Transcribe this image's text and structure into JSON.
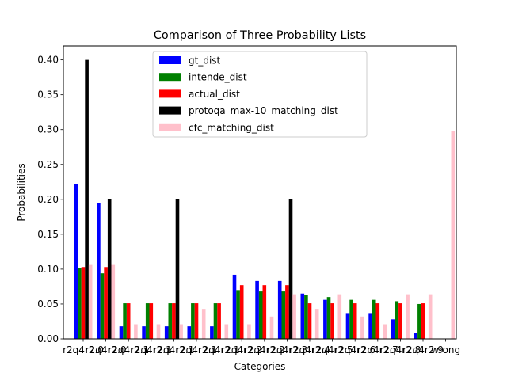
{
  "chart_data": {
    "type": "bar",
    "title": "Comparison of Three Probability Lists",
    "xlabel": "Categories",
    "ylabel": "Probabilities",
    "ylim": [
      0,
      0.42
    ],
    "yticks": [
      "0.00",
      "0.05",
      "0.10",
      "0.15",
      "0.20",
      "0.25",
      "0.30",
      "0.35",
      "0.40"
    ],
    "ytick_values": [
      0,
      0.05,
      0.1,
      0.15,
      0.2,
      0.25,
      0.3,
      0.35,
      0.4
    ],
    "legend_position": "top-center",
    "grid": false,
    "categories": [
      "r2q4r2.0",
      "r2q4r2.0",
      "r2q4r2.1",
      "r2q4r2.1",
      "r2q4r2.1",
      "r2q4r2.1",
      "r2q4r2.1",
      "r2q4r2.2",
      "r2q4r2.2",
      "r2q4r2.3",
      "r2q4r2.4",
      "r2q4r2.5",
      "r2q4r2.6",
      "r2q4r2.7",
      "r2q4r2.8",
      "r2q4r2.9",
      "wrong"
    ],
    "series": [
      {
        "name": "gt_dist",
        "color": "#0000ff",
        "values": [
          0.222,
          0.195,
          0.018,
          0.018,
          0.018,
          0.018,
          0.018,
          0.092,
          0.083,
          0.083,
          0.065,
          0.056,
          0.037,
          0.037,
          0.028,
          0.009,
          0.0
        ]
      },
      {
        "name": "intende_dist",
        "color": "#008000",
        "values": [
          0.101,
          0.094,
          0.051,
          0.051,
          0.051,
          0.051,
          0.051,
          0.07,
          0.068,
          0.068,
          0.063,
          0.06,
          0.056,
          0.056,
          0.054,
          0.05,
          0.0
        ]
      },
      {
        "name": "actual_dist",
        "color": "#ff0000",
        "values": [
          0.103,
          0.103,
          0.051,
          0.051,
          0.051,
          0.051,
          0.051,
          0.077,
          0.077,
          0.077,
          0.051,
          0.051,
          0.051,
          0.051,
          0.051,
          0.051,
          0.0
        ]
      },
      {
        "name": "protoqa_max-10_matching_dist",
        "color": "#000000",
        "values": [
          0.4,
          0.2,
          0.0,
          0.0,
          0.2,
          0.0,
          0.0,
          0.0,
          0.0,
          0.2,
          0.0,
          0.0,
          0.0,
          0.0,
          0.0,
          0.0,
          0.0
        ]
      },
      {
        "name": "cfc_matching_dist",
        "color": "#ffc0cb",
        "values": [
          0.106,
          0.106,
          0.021,
          0.021,
          0.021,
          0.043,
          0.021,
          0.021,
          0.032,
          0.064,
          0.043,
          0.064,
          0.032,
          0.021,
          0.064,
          0.064,
          0.298
        ]
      }
    ]
  }
}
